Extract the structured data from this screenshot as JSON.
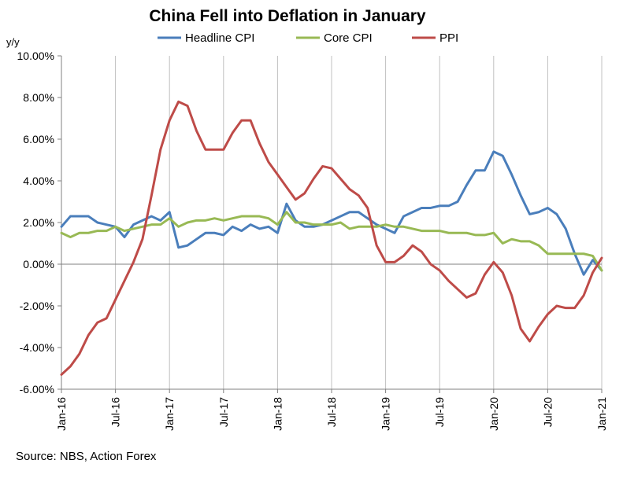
{
  "chart_data": {
    "type": "line",
    "title": "China Fell into Deflation in January",
    "ylabel": "y/y",
    "xlabel": "",
    "source": "Source: NBS, Action Forex",
    "ylim": [
      -6,
      10
    ],
    "yticks": [
      10,
      8,
      6,
      4,
      2,
      0,
      -2,
      -4,
      -6
    ],
    "ytick_labels": [
      "10.00%",
      "8.00%",
      "6.00%",
      "4.00%",
      "2.00%",
      "0.00%",
      "-2.00%",
      "-4.00%",
      "-6.00%"
    ],
    "xtick_labels": [
      "Jan-16",
      "Jul-16",
      "Jan-17",
      "Jul-17",
      "Jan-18",
      "Jul-18",
      "Jan-19",
      "Jul-19",
      "Jan-20",
      "Jul-20",
      "Jan-21"
    ],
    "xtick_month_index": [
      0,
      6,
      12,
      18,
      24,
      30,
      36,
      42,
      48,
      54,
      60
    ],
    "months_count": 61,
    "grid": "vertical",
    "legend_position": "top",
    "series": [
      {
        "name": "Headline CPI",
        "color": "#4a7ebb",
        "values": [
          1.8,
          2.3,
          2.3,
          2.3,
          2.0,
          1.9,
          1.8,
          1.3,
          1.9,
          2.1,
          2.3,
          2.1,
          2.5,
          0.8,
          0.9,
          1.2,
          1.5,
          1.5,
          1.4,
          1.8,
          1.6,
          1.9,
          1.7,
          1.8,
          1.5,
          2.9,
          2.1,
          1.8,
          1.8,
          1.9,
          2.1,
          2.3,
          2.5,
          2.5,
          2.2,
          1.9,
          1.7,
          1.5,
          2.3,
          2.5,
          2.7,
          2.7,
          2.8,
          2.8,
          3.0,
          3.8,
          4.5,
          4.5,
          5.4,
          5.2,
          4.3,
          3.3,
          2.4,
          2.5,
          2.7,
          2.4,
          1.7,
          0.5,
          -0.5,
          0.2,
          -0.3
        ]
      },
      {
        "name": "Core CPI",
        "color": "#98b954",
        "values": [
          1.5,
          1.3,
          1.5,
          1.5,
          1.6,
          1.6,
          1.8,
          1.6,
          1.7,
          1.8,
          1.9,
          1.9,
          2.2,
          1.8,
          2.0,
          2.1,
          2.1,
          2.2,
          2.1,
          2.2,
          2.3,
          2.3,
          2.3,
          2.2,
          1.9,
          2.5,
          2.0,
          2.0,
          1.9,
          1.9,
          1.9,
          2.0,
          1.7,
          1.8,
          1.8,
          1.8,
          1.9,
          1.8,
          1.8,
          1.7,
          1.6,
          1.6,
          1.6,
          1.5,
          1.5,
          1.5,
          1.4,
          1.4,
          1.5,
          1.0,
          1.2,
          1.1,
          1.1,
          0.9,
          0.5,
          0.5,
          0.5,
          0.5,
          0.5,
          0.4,
          -0.3
        ]
      },
      {
        "name": "PPI",
        "color": "#be4b48",
        "values": [
          -5.3,
          -4.9,
          -4.3,
          -3.4,
          -2.8,
          -2.6,
          -1.7,
          -0.8,
          0.1,
          1.2,
          3.3,
          5.5,
          6.9,
          7.8,
          7.6,
          6.4,
          5.5,
          5.5,
          5.5,
          6.3,
          6.9,
          6.9,
          5.8,
          4.9,
          4.3,
          3.7,
          3.1,
          3.4,
          4.1,
          4.7,
          4.6,
          4.1,
          3.6,
          3.3,
          2.7,
          0.9,
          0.1,
          0.1,
          0.4,
          0.9,
          0.6,
          0.0,
          -0.3,
          -0.8,
          -1.2,
          -1.6,
          -1.4,
          -0.5,
          0.1,
          -0.4,
          -1.5,
          -3.1,
          -3.7,
          -3.0,
          -2.4,
          -2.0,
          -2.1,
          -2.1,
          -1.5,
          -0.4,
          0.3
        ]
      }
    ]
  }
}
